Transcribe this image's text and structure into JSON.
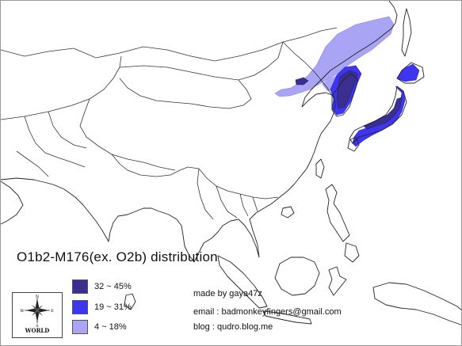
{
  "map": {
    "title": "O1b2-M176(ex. O2b) distribution",
    "legend": [
      {
        "range": "32 ~ 45%",
        "color": "#3a2f8f"
      },
      {
        "range": "19 ~ 31%",
        "color": "#3d35f0"
      },
      {
        "range": "4 ~ 18%",
        "color": "#a9a4f3"
      }
    ],
    "credits": {
      "author": "made by gaya47z",
      "email": "email : badmonkeyfingers@gmail.com",
      "blog": "blog : qudro.blog.me"
    },
    "compass": {
      "label": "WORLD",
      "icon": "compass-rose-icon",
      "directions": {
        "north": "N",
        "south": "S",
        "east": "E",
        "west": "W"
      }
    },
    "colors": {
      "background": "#ffffff",
      "outline": "#222222"
    }
  }
}
